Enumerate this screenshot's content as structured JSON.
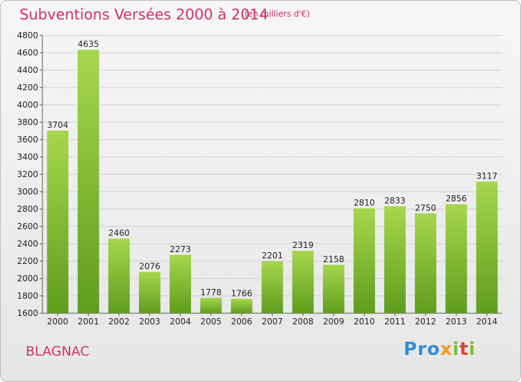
{
  "header": {
    "title": "Subventions Versées 2000 à 2014",
    "subtitle": "(en milliers d'€)"
  },
  "footer": {
    "place": "BLAGNAC",
    "logo": {
      "p1": "Pro",
      "p2": "x",
      "p3": "i",
      "p4": "t",
      "p5": "i"
    }
  },
  "colors": {
    "title": "#d1306a",
    "bar_top": "#a6d74e",
    "bar_bottom": "#5f9d1c",
    "grid": "#cfcfcf"
  },
  "chart_data": {
    "type": "bar",
    "categories": [
      "2000",
      "2001",
      "2002",
      "2003",
      "2004",
      "2005",
      "2006",
      "2007",
      "2008",
      "2009",
      "2010",
      "2011",
      "2012",
      "2013",
      "2014"
    ],
    "values": [
      3704,
      4635,
      2460,
      2076,
      2273,
      1778,
      1766,
      2201,
      2319,
      2158,
      2810,
      2833,
      2750,
      2856,
      3117
    ],
    "title": "Subventions Versées 2000 à 2014",
    "xlabel": "",
    "ylabel": "",
    "ylim": [
      1600,
      4800
    ],
    "yticks": [
      1600,
      1800,
      2000,
      2200,
      2400,
      2600,
      2800,
      3000,
      3200,
      3400,
      3600,
      3800,
      4000,
      4200,
      4400,
      4600,
      4800
    ],
    "grid": true,
    "legend": "none"
  }
}
